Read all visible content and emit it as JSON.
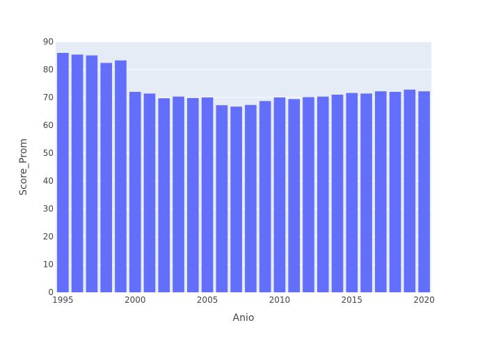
{
  "chart_data": {
    "type": "bar",
    "title": "",
    "xlabel": "Anio",
    "ylabel": "Score_Prom",
    "x": [
      1995,
      1996,
      1997,
      1998,
      1999,
      2000,
      2001,
      2002,
      2003,
      2004,
      2005,
      2006,
      2007,
      2008,
      2009,
      2010,
      2011,
      2012,
      2013,
      2014,
      2015,
      2016,
      2017,
      2018,
      2019,
      2020
    ],
    "values": [
      86.0,
      85.4,
      85.1,
      82.4,
      83.3,
      72.0,
      71.4,
      69.7,
      70.3,
      69.8,
      70.0,
      67.2,
      66.7,
      67.3,
      68.7,
      70.0,
      69.4,
      70.1,
      70.3,
      71.0,
      71.6,
      71.4,
      72.2,
      72.0,
      72.8,
      72.2
    ],
    "x_ticks": [
      "1995",
      "2000",
      "2005",
      "2010",
      "2015",
      "2020"
    ],
    "y_ticks": [
      "0",
      "10",
      "20",
      "30",
      "40",
      "50",
      "60",
      "70",
      "80",
      "90"
    ],
    "ylim": [
      0,
      90
    ],
    "xlim": [
      1994.5,
      2020.5
    ],
    "grid": true,
    "legend": "none",
    "colors": {
      "bar": "#636efa",
      "plot_bg": "#e5ecf6",
      "grid": "#ffffff",
      "text": "#444444"
    }
  }
}
